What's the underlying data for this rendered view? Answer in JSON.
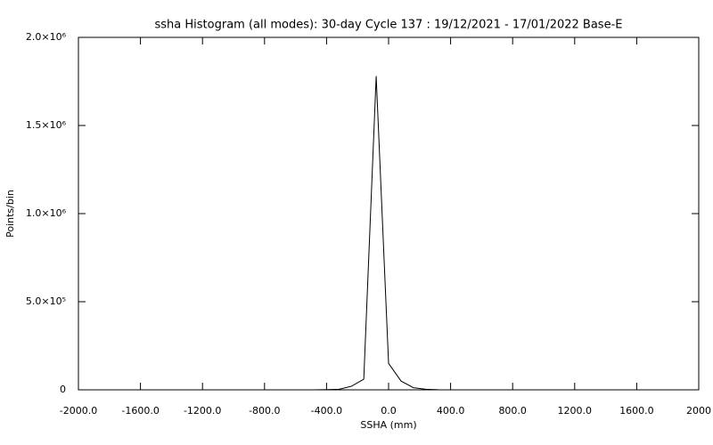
{
  "chart_data": {
    "type": "line",
    "title": "ssha Histogram (all modes): 30-day Cycle 137 : 19/12/2021 - 17/01/2022 Base-E",
    "x_label": "SSHA (mm)",
    "y_label": "Points/bin",
    "x": [
      -480,
      -400,
      -320,
      -240,
      -160,
      -80,
      0,
      80,
      160,
      240,
      320
    ],
    "values": [
      0,
      1000,
      3000,
      20000,
      60000,
      1780000,
      150000,
      50000,
      12000,
      3000,
      500
    ],
    "color": "#000000",
    "xlim": [
      -2000,
      2000
    ],
    "xticks": [
      {
        "value": -2000,
        "label": "-2000.0"
      },
      {
        "value": -1600,
        "label": "-1600.0"
      },
      {
        "value": -1200,
        "label": "-1200.0"
      },
      {
        "value": -800,
        "label": "-800.0"
      },
      {
        "value": -400,
        "label": "-400.0"
      },
      {
        "value": 0,
        "label": "0.0"
      },
      {
        "value": 400,
        "label": "400.0"
      },
      {
        "value": 800,
        "label": "800.0"
      },
      {
        "value": 1200,
        "label": "1200.0"
      },
      {
        "value": 1600,
        "label": "1600.0"
      },
      {
        "value": 2000,
        "label": "2000"
      }
    ],
    "ylim": [
      0,
      2000000
    ],
    "yticks": [
      0,
      {
        "value": 500000,
        "label": "5.0×10⁵"
      },
      {
        "value": 1000000,
        "label": "1.0×10⁶"
      },
      {
        "value": 1500000,
        "label": "1.5×10⁶"
      },
      {
        "value": 2000000,
        "label": "2.0×10⁶"
      }
    ],
    "grid": false
  }
}
